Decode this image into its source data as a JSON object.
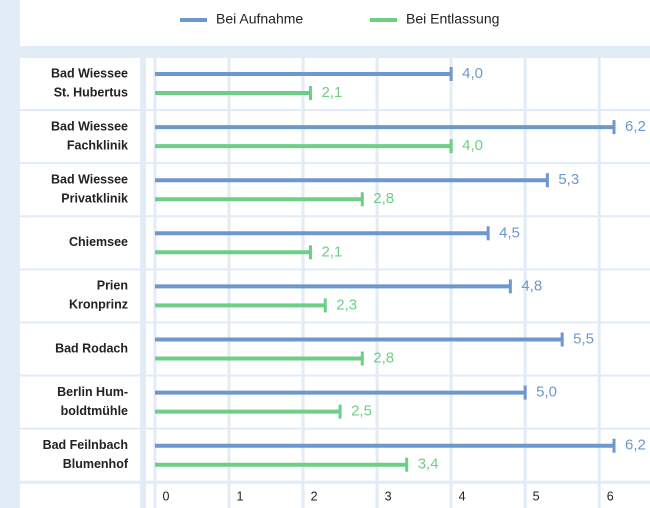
{
  "chart_data": {
    "type": "hbar",
    "categories": [
      [
        "Bad Wiessee",
        "St. Hubertus"
      ],
      [
        "Bad Wiessee",
        "Fachklinik"
      ],
      [
        "Bad Wiessee",
        "Privatklinik"
      ],
      [
        "Chiemsee"
      ],
      [
        "Prien",
        "Kronprinz"
      ],
      [
        "Bad Rodach"
      ],
      [
        "Berlin Hum-",
        "boldtmühle"
      ],
      [
        "Bad Feilnbach",
        "Blumenhof"
      ]
    ],
    "series": [
      {
        "name": "Bei Aufnahme",
        "color": "#6e97cd",
        "values": [
          4.0,
          6.2,
          5.3,
          4.5,
          4.8,
          5.5,
          5.0,
          6.2
        ],
        "value_labels": [
          "4,0",
          "6,2",
          "5,3",
          "4,5",
          "4,8",
          "5,5",
          "5,0",
          "6,2"
        ]
      },
      {
        "name": "Bei Entlassung",
        "color": "#6dcf86",
        "values": [
          2.1,
          4.0,
          2.8,
          2.1,
          2.3,
          2.8,
          2.5,
          3.4
        ],
        "value_labels": [
          "2,1",
          "4,0",
          "2,8",
          "2,1",
          "2,3",
          "2,8",
          "2,5",
          "3,4"
        ]
      }
    ],
    "xlim": [
      0,
      6.7
    ],
    "xticks": [
      0,
      1,
      2,
      3,
      4,
      5,
      6
    ],
    "grid": true,
    "legend": "top"
  }
}
